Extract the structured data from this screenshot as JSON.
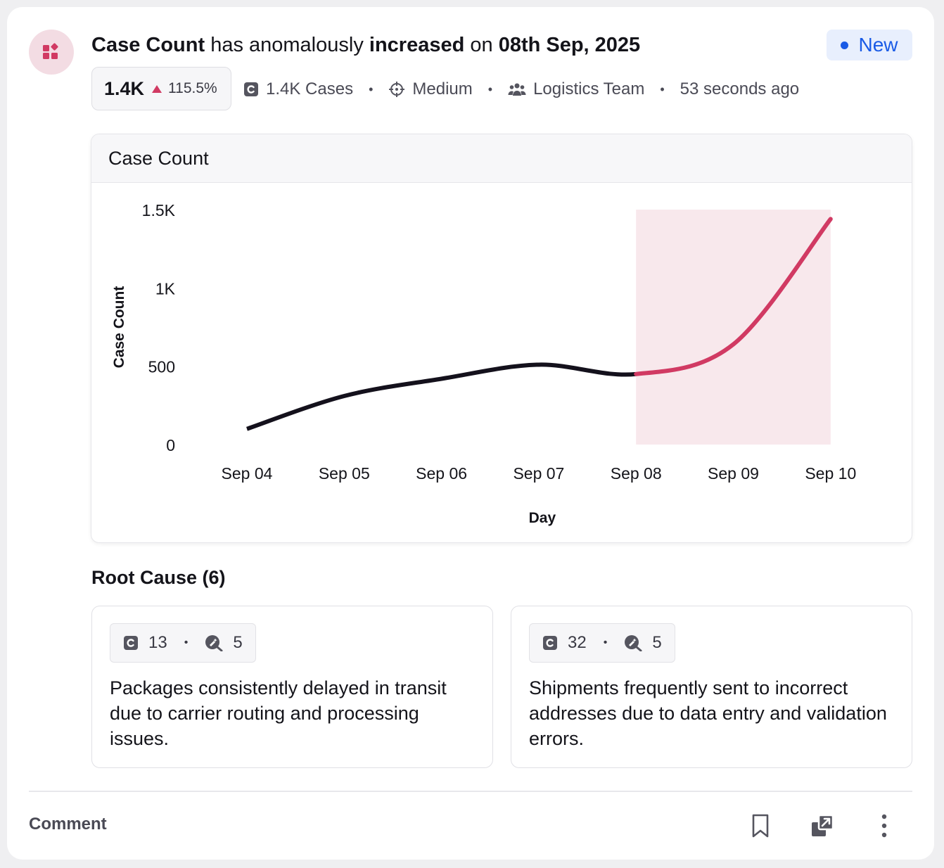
{
  "headline": {
    "metric": "Case Count",
    "text1": " has anomalously ",
    "direction": "increased",
    "text2": " on ",
    "date": "08th Sep, 2025"
  },
  "status_badge": "New",
  "metric_box": {
    "value": "1.4K",
    "change": "115.5%"
  },
  "meta": {
    "cases": "1.4K Cases",
    "severity": "Medium",
    "team": "Logistics Team",
    "time": "53 seconds ago"
  },
  "chart_header": "Case Count",
  "chart_data": {
    "type": "line",
    "ylabel": "Case Count",
    "xlabel": "Day",
    "ylim": [
      0,
      1500
    ],
    "y_ticks": [
      "0",
      "500",
      "1K",
      "1.5K"
    ],
    "y_tick_values": [
      0,
      500,
      1000,
      1500
    ],
    "categories": [
      "Sep 04",
      "Sep 05",
      "Sep 06",
      "Sep 07",
      "Sep 08",
      "Sep 09",
      "Sep 10"
    ],
    "values": [
      100,
      310,
      420,
      510,
      450,
      640,
      1440
    ],
    "anomaly_range": [
      "Sep 08",
      "Sep 10"
    ],
    "colors": {
      "normal": "#14111c",
      "anomaly": "#d13a63",
      "anomaly_band": "#f8e8ec"
    }
  },
  "root_cause": {
    "title": "Root Cause (6)",
    "items": [
      {
        "cases": "13",
        "insights": "5",
        "text": "Packages consistently delayed in transit due to carrier routing and processing issues."
      },
      {
        "cases": "32",
        "insights": "5",
        "text": "Shipments frequently sent to incorrect addresses due to data entry and validation errors."
      }
    ]
  },
  "footer": {
    "comment": "Comment"
  },
  "icons": [
    "apps-icon",
    "triangle-up-icon",
    "case-icon",
    "crosshair-icon",
    "team-icon",
    "insight-icon",
    "bookmark-icon",
    "open-external-icon",
    "more-vertical-icon"
  ]
}
